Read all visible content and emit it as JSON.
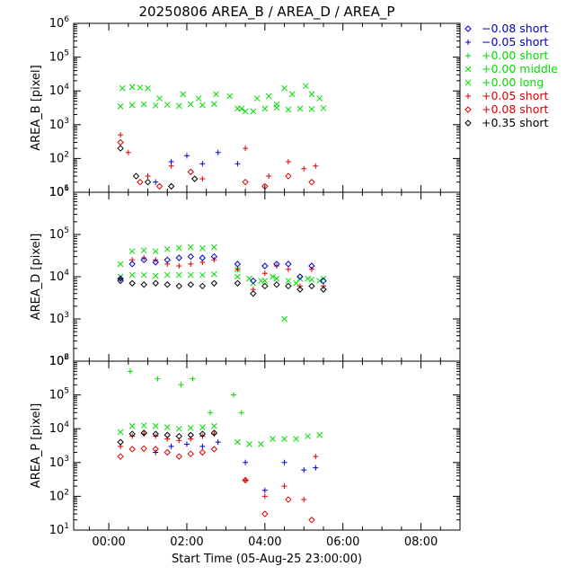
{
  "title": "20250806 AREA_B / AREA_D / AREA_P",
  "xlabel": "Start Time (05-Aug-25 23:00:00)",
  "x_ticks": [
    "00:00",
    "02:00",
    "04:00",
    "06:00",
    "08:00"
  ],
  "y_tick_exponents": [
    "1",
    "2",
    "3",
    "4",
    "5",
    "6"
  ],
  "legend": [
    {
      "label": "−0.08 short",
      "symbol": "diamond",
      "color": "#0000cc"
    },
    {
      "label": "−0.05 short",
      "symbol": "plus",
      "color": "#0000cc"
    },
    {
      "label": "+0.00 short",
      "symbol": "plus",
      "color": "#00dd00"
    },
    {
      "label": "+0.00 middle",
      "symbol": "cross",
      "color": "#00dd00"
    },
    {
      "label": "+0.00 long",
      "symbol": "cross",
      "color": "#00dd00"
    },
    {
      "label": "+0.05 short",
      "symbol": "plus",
      "color": "#dd0000"
    },
    {
      "label": "+0.08 short",
      "symbol": "diamond",
      "color": "#dd0000"
    },
    {
      "label": "+0.35 short",
      "symbol": "diamond",
      "color": "#000000"
    }
  ],
  "chart_data": [
    {
      "type": "scatter",
      "ylabel": "AREA_B [pixel]",
      "y_scale": "log",
      "ylim": [
        10,
        1000000
      ],
      "xlim_hours": [
        -0.9,
        9.0
      ],
      "series": [
        {
          "name": "+0.00 middle",
          "x": [
            0.3,
            0.6,
            0.9,
            1.2,
            1.5,
            1.8,
            2.1,
            2.4,
            2.7,
            3.3,
            3.7,
            4.0,
            4.3,
            4.6,
            4.9,
            5.2,
            5.5
          ],
          "y": [
            3500,
            3800,
            4000,
            3700,
            3900,
            3600,
            4000,
            3800,
            4100,
            3000,
            2500,
            3000,
            3200,
            2800,
            3000,
            2900,
            3100
          ]
        },
        {
          "name": "+0.00 long",
          "x": [
            0.35,
            0.6,
            0.8,
            1.0,
            1.3,
            1.9,
            2.3,
            2.75,
            3.1,
            3.4,
            3.5,
            3.8,
            4.1,
            4.3,
            4.5,
            4.7,
            5.05,
            5.2,
            5.4
          ],
          "y": [
            12000,
            13000,
            12500,
            12000,
            6000,
            8000,
            6000,
            8000,
            7000,
            3000,
            2500,
            6000,
            7000,
            4000,
            12000,
            8000,
            14000,
            8000,
            6000
          ]
        },
        {
          "name": "+0.05 short",
          "x": [
            0.3,
            0.5,
            1.0,
            1.6,
            2.4,
            3.5,
            4.1,
            4.6,
            5.0,
            5.3
          ],
          "y": [
            500,
            150,
            30,
            60,
            25,
            200,
            30,
            80,
            50,
            60
          ]
        },
        {
          "name": "-0.05 short",
          "x": [
            1.2,
            1.6,
            2.0,
            2.4,
            2.8,
            3.3
          ],
          "y": [
            20,
            80,
            120,
            70,
            150,
            70
          ]
        },
        {
          "name": "+0.08 short",
          "x": [
            0.3,
            0.8,
            1.3,
            2.1,
            3.5,
            4.0,
            4.6,
            5.2
          ],
          "y": [
            300,
            20,
            15,
            40,
            20,
            15,
            30,
            20
          ]
        },
        {
          "name": "+0.35 short",
          "x": [
            0.3,
            0.7,
            1.0,
            1.6,
            2.2
          ],
          "y": [
            200,
            30,
            20,
            15,
            25
          ]
        }
      ]
    },
    {
      "type": "scatter",
      "ylabel": "AREA_D [pixel]",
      "y_scale": "log",
      "ylim": [
        100,
        1000000
      ],
      "xlim_hours": [
        -0.9,
        9.0
      ],
      "series": [
        {
          "name": "+0.00 long",
          "x": [
            0.3,
            0.6,
            0.9,
            1.2,
            1.5,
            1.8,
            2.1,
            2.4,
            2.7,
            3.3,
            3.6,
            3.9,
            4.2,
            4.5,
            4.8,
            5.1,
            5.4
          ],
          "y": [
            20000,
            40000,
            42000,
            40000,
            45000,
            48000,
            50000,
            47000,
            50000,
            15000,
            9000,
            8000,
            10000,
            1000,
            7000,
            9000,
            8000
          ]
        },
        {
          "name": "+0.00 middle",
          "x": [
            0.3,
            0.6,
            0.9,
            1.2,
            1.5,
            1.8,
            2.1,
            2.4,
            2.7,
            3.3,
            3.7,
            4.0,
            4.3,
            4.6,
            4.9,
            5.2,
            5.5
          ],
          "y": [
            10000,
            11000,
            11000,
            10500,
            11000,
            11000,
            11000,
            11000,
            11500,
            10000,
            7000,
            8000,
            9000,
            8000,
            9000,
            8500,
            9000
          ]
        },
        {
          "name": "+0.05 short",
          "x": [
            0.3,
            0.6,
            0.9,
            1.2,
            1.5,
            1.8,
            2.1,
            2.4,
            2.7,
            3.3,
            3.7,
            4.0,
            4.3,
            4.6,
            4.9,
            5.2,
            5.5
          ],
          "y": [
            9000,
            25000,
            28000,
            25000,
            20000,
            18000,
            20000,
            22000,
            25000,
            15000,
            5000,
            12000,
            18000,
            15000,
            6000,
            15000,
            6000
          ]
        },
        {
          "name": "-0.08 short",
          "x": [
            0.3,
            0.6,
            0.9,
            1.2,
            1.5,
            1.8,
            2.1,
            2.4,
            2.7,
            3.3,
            3.7,
            4.0,
            4.3,
            4.6,
            4.9,
            5.2,
            5.5
          ],
          "y": [
            9000,
            20000,
            25000,
            22000,
            25000,
            28000,
            30000,
            28000,
            30000,
            20000,
            8000,
            18000,
            20000,
            20000,
            10000,
            18000,
            8000
          ]
        },
        {
          "name": "+0.35 short",
          "x": [
            0.3,
            0.6,
            0.9,
            1.2,
            1.5,
            1.8,
            2.1,
            2.4,
            2.7,
            3.3,
            3.7,
            4.0,
            4.3,
            4.6,
            4.9,
            5.2,
            5.5
          ],
          "y": [
            8000,
            7000,
            6500,
            7000,
            6500,
            6000,
            6500,
            6000,
            7000,
            7000,
            4000,
            6000,
            6500,
            6000,
            5000,
            6000,
            5000
          ]
        }
      ]
    },
    {
      "type": "scatter",
      "ylabel": "AREA_P [pixel]",
      "y_scale": "log",
      "ylim": [
        10,
        1000000
      ],
      "xlim_hours": [
        -0.9,
        9.0
      ],
      "series": [
        {
          "name": "+0.00 long",
          "x": [
            0.3,
            0.6,
            0.9,
            1.2,
            1.5,
            1.8,
            2.1,
            2.4,
            2.7,
            3.3,
            3.6,
            3.9,
            4.2,
            4.5,
            4.8,
            5.1,
            5.4
          ],
          "y": [
            8000,
            12000,
            12500,
            12000,
            11000,
            10000,
            10500,
            11000,
            12000,
            4000,
            3500,
            3500,
            5000,
            5000,
            5000,
            6000,
            6500
          ]
        },
        {
          "name": "+0.00 short",
          "x": [
            0.55,
            1.25,
            1.85,
            2.15,
            2.6,
            3.2,
            3.4
          ],
          "y": [
            500000,
            300000,
            200000,
            300000,
            30000,
            100000,
            30000
          ]
        },
        {
          "name": "+0.05 short",
          "x": [
            0.3,
            0.6,
            0.9,
            1.2,
            1.5,
            1.8,
            2.1,
            2.4,
            2.7,
            3.5,
            4.0,
            4.5,
            5.0,
            5.3
          ],
          "y": [
            3000,
            6000,
            7000,
            6000,
            5000,
            4500,
            5000,
            6000,
            7000,
            300,
            100,
            200,
            80,
            1500
          ]
        },
        {
          "name": "-0.05 short",
          "x": [
            1.2,
            1.6,
            2.0,
            2.4,
            2.8,
            3.5,
            4.0,
            4.5,
            5.0,
            5.3
          ],
          "y": [
            2000,
            3000,
            3500,
            3000,
            4000,
            1000,
            150,
            1000,
            600,
            700
          ]
        },
        {
          "name": "+0.08 short",
          "x": [
            0.3,
            0.6,
            0.9,
            1.2,
            1.5,
            1.8,
            2.1,
            2.4,
            2.7,
            3.5,
            4.0,
            4.6,
            5.2
          ],
          "y": [
            1500,
            2500,
            2600,
            2500,
            2000,
            1500,
            1800,
            2000,
            2500,
            300,
            30,
            80,
            20
          ]
        },
        {
          "name": "+0.35 short",
          "x": [
            0.3,
            0.6,
            0.9,
            1.2,
            1.5,
            1.8,
            2.1,
            2.4,
            2.7
          ],
          "y": [
            4000,
            7000,
            7500,
            7000,
            6500,
            6000,
            6500,
            7000,
            7500
          ]
        }
      ]
    }
  ]
}
